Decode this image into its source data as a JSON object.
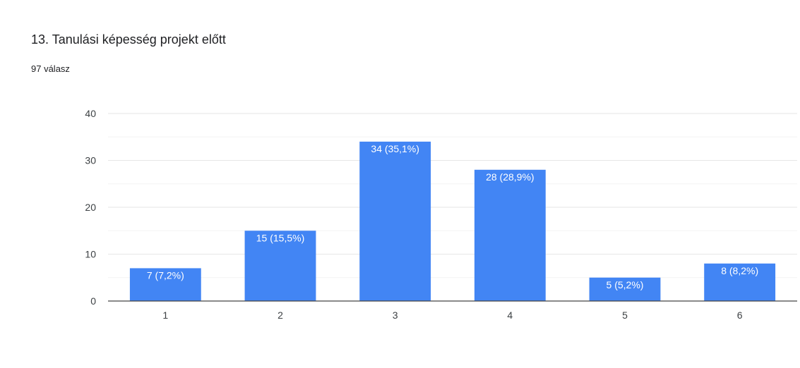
{
  "question": {
    "title": "13. Tanulási képesség projekt előtt",
    "response_count": "97 válasz"
  },
  "colors": {
    "bar": "#4285f4",
    "grid_major": "#e6e6e6",
    "grid_minor": "#f3f3f3",
    "axis": "#444444"
  },
  "chart_data": {
    "type": "bar",
    "title": "13. Tanulási képesség projekt előtt",
    "categories": [
      "1",
      "2",
      "3",
      "4",
      "5",
      "6"
    ],
    "values": [
      7,
      15,
      34,
      28,
      5,
      8
    ],
    "data_labels": [
      "7 (7,2%)",
      "15 (15,5%)",
      "34 (35,1%)",
      "28 (28,9%)",
      "5 (5,2%)",
      "8 (8,2%)"
    ],
    "ylim": [
      0,
      40
    ],
    "yticks": [
      0,
      10,
      20,
      30,
      40
    ],
    "grid": true,
    "legend": "none"
  }
}
